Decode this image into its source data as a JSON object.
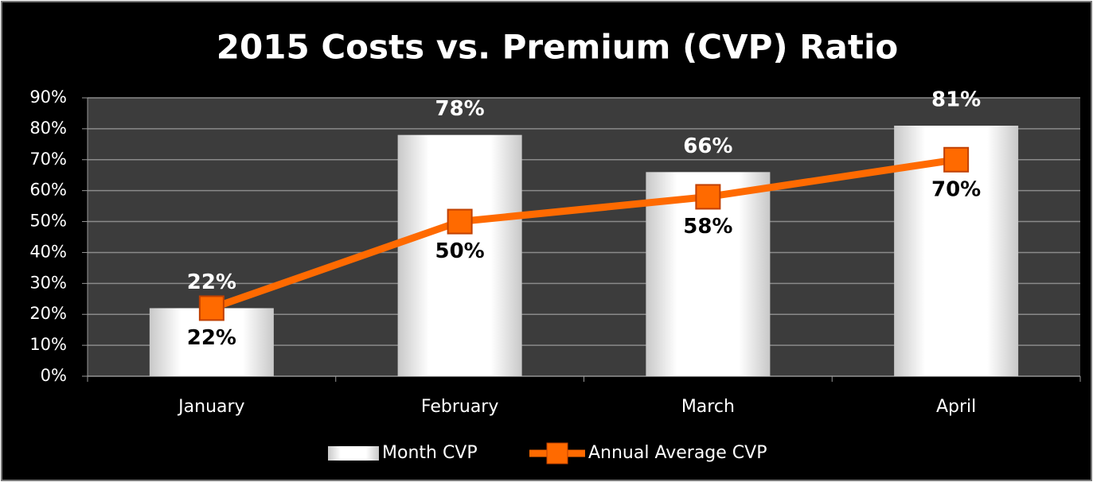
{
  "chart_data": {
    "type": "bar",
    "title": "2015 Costs vs. Premium (CVP) Ratio",
    "categories": [
      "January",
      "February",
      "March",
      "April"
    ],
    "series": [
      {
        "name": "Month CVP",
        "type": "bar",
        "color": "#ffffff",
        "values": [
          22,
          78,
          66,
          81
        ],
        "value_labels": [
          "22%",
          "78%",
          "66%",
          "81%"
        ]
      },
      {
        "name": "Annual Average CVP",
        "type": "line",
        "color": "#ff6a00",
        "values": [
          22,
          50,
          58,
          70
        ],
        "value_labels": [
          "22%",
          "50%",
          "58%",
          "70%"
        ]
      }
    ],
    "ylim": [
      0,
      90
    ],
    "yticks": [
      {
        "value": 0,
        "label": "0%"
      },
      {
        "value": 10,
        "label": "10%"
      },
      {
        "value": 20,
        "label": "20%"
      },
      {
        "value": 30,
        "label": "30%"
      },
      {
        "value": 40,
        "label": "40%"
      },
      {
        "value": 50,
        "label": "50%"
      },
      {
        "value": 60,
        "label": "60%"
      },
      {
        "value": 70,
        "label": "70%"
      },
      {
        "value": 80,
        "label": "80%"
      },
      {
        "value": 90,
        "label": "90%"
      }
    ],
    "grid": true,
    "legend": "bottom"
  }
}
